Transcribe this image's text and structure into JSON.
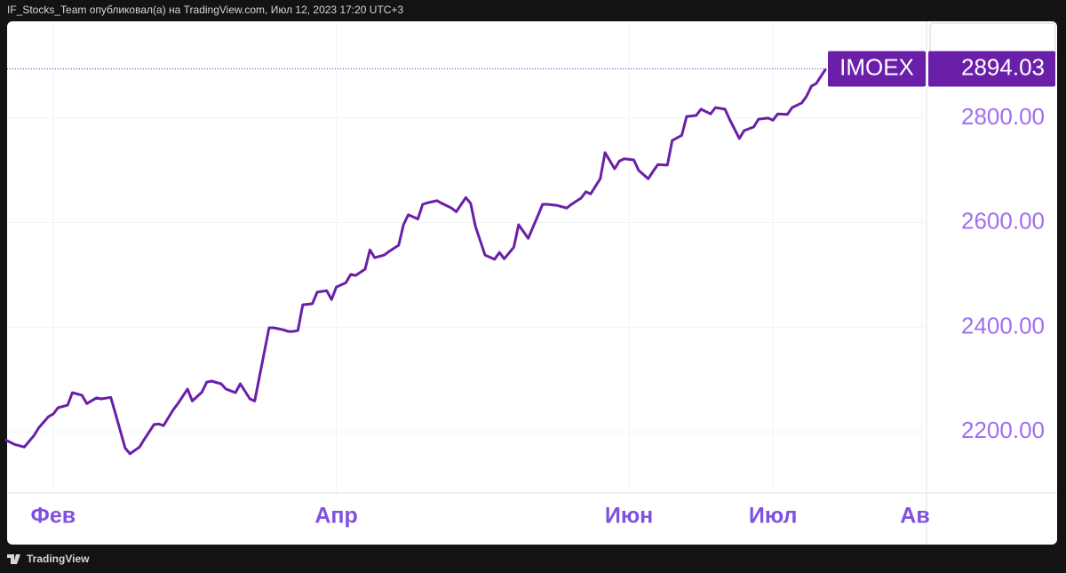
{
  "header": {
    "text": "IF_Stocks_Team опубликовал(а) на TradingView.com, Июл 12, 2023 17:20 UTC+3"
  },
  "footer": {
    "brand": "TradingView"
  },
  "chart_data": {
    "type": "line",
    "x": [
      22,
      24,
      26,
      28,
      29,
      31,
      32,
      33,
      35,
      36,
      38,
      39,
      41,
      42,
      44,
      45,
      47,
      48,
      50,
      51,
      53,
      54,
      55,
      57,
      58,
      60,
      61,
      63,
      64,
      65,
      67,
      68,
      70,
      71,
      73,
      74,
      77,
      78,
      80,
      81,
      82,
      83,
      84,
      86,
      87,
      89,
      90,
      91,
      93,
      94,
      95,
      97,
      98,
      99,
      101,
      102,
      104,
      105,
      106,
      108,
      109,
      110,
      112,
      113,
      115,
      116,
      118,
      119,
      120,
      122,
      124,
      125,
      126,
      128,
      129,
      131,
      133,
      134,
      135,
      137,
      139,
      140,
      142,
      143,
      144,
      146,
      147,
      149,
      150,
      151,
      153,
      154,
      156,
      157,
      158,
      160,
      161,
      163,
      164,
      166,
      167,
      169,
      170,
      172,
      173,
      175,
      176,
      178,
      179,
      181,
      182,
      183,
      185,
      186,
      188,
      189,
      190,
      191,
      193
    ],
    "series": [
      {
        "name": "IMOEX",
        "color": "#6a1fa8",
        "values": [
          2185,
          2176,
          2171,
          2193,
          2208,
          2229,
          2234,
          2246,
          2251,
          2275,
          2270,
          2254,
          2265,
          2263,
          2266,
          2234,
          2169,
          2158,
          2171,
          2186,
          2214,
          2215,
          2212,
          2242,
          2254,
          2282,
          2259,
          2276,
          2295,
          2297,
          2292,
          2282,
          2275,
          2292,
          2263,
          2259,
          2399,
          2399,
          2395,
          2392,
          2392,
          2394,
          2443,
          2445,
          2467,
          2470,
          2453,
          2477,
          2485,
          2501,
          2499,
          2511,
          2548,
          2533,
          2538,
          2545,
          2557,
          2596,
          2615,
          2607,
          2635,
          2638,
          2642,
          2637,
          2628,
          2621,
          2648,
          2637,
          2593,
          2538,
          2530,
          2543,
          2531,
          2553,
          2596,
          2570,
          2613,
          2635,
          2635,
          2633,
          2628,
          2635,
          2647,
          2659,
          2655,
          2684,
          2734,
          2703,
          2718,
          2722,
          2720,
          2700,
          2684,
          2698,
          2711,
          2710,
          2757,
          2767,
          2803,
          2805,
          2817,
          2808,
          2820,
          2817,
          2797,
          2761,
          2776,
          2783,
          2798,
          2800,
          2796,
          2808,
          2807,
          2820,
          2829,
          2842,
          2861,
          2866,
          2894.03
        ]
      }
    ],
    "xlim": [
      22.4,
      214
    ],
    "xticks": [
      {
        "value": 32,
        "label": "Фев"
      },
      {
        "value": 91,
        "label": "Апр"
      },
      {
        "value": 152,
        "label": "Июн"
      },
      {
        "value": 182,
        "label": "Июл"
      },
      {
        "value": 213,
        "label": "Ав"
      }
    ],
    "ylim": [
      2083,
      2985
    ],
    "yticks": [
      {
        "value": 2200,
        "label": "2200.00"
      },
      {
        "value": 2400,
        "label": "2400.00"
      },
      {
        "value": 2600,
        "label": "2600.00"
      },
      {
        "value": 2800,
        "label": "2800.00"
      }
    ],
    "grid": true
  }
}
